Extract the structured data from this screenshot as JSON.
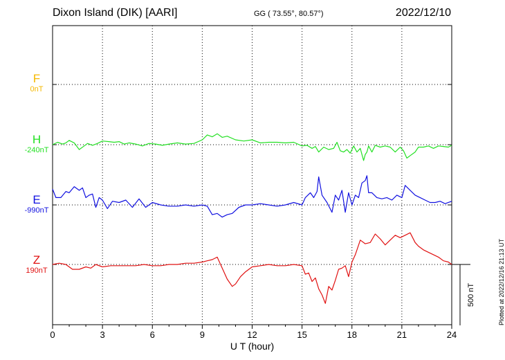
{
  "header": {
    "station": "Dixon Island (DIK)  [AARI]",
    "coords": "GG ( 73.55°,  80.57°)",
    "date": "2022/12/10"
  },
  "footer": {
    "plotted": "Plotted at 2022/12/16 21:13 UT"
  },
  "components": [
    {
      "name": "F",
      "baseline": "0nT",
      "color": "#f5b800"
    },
    {
      "name": "H",
      "baseline": "-240nT",
      "color": "#22e022"
    },
    {
      "name": "E",
      "baseline": "-990nT",
      "color": "#1010e0"
    },
    {
      "name": "Z",
      "baseline": "190nT",
      "color": "#e01010"
    }
  ],
  "chart_data": {
    "type": "line",
    "title": "Dixon Island (DIK)  [AARI]",
    "xlabel": "U T (hour)",
    "ylabel": "",
    "xlim": [
      0,
      24
    ],
    "xticks": [
      "0",
      "3",
      "6",
      "9",
      "12",
      "15",
      "18",
      "21",
      "24"
    ],
    "grid": true,
    "scale_bar": {
      "label": "500 nT",
      "value": 500
    },
    "series": [
      {
        "name": "F",
        "baseline_nT": 0,
        "x": [],
        "y": []
      },
      {
        "name": "H",
        "baseline_nT": -240,
        "x": [
          0,
          0.3,
          0.6,
          0.8,
          1.0,
          1.3,
          1.6,
          1.9,
          2.1,
          2.4,
          2.7,
          3.0,
          3.4,
          3.7,
          4.0,
          4.3,
          4.6,
          5.0,
          5.4,
          5.8,
          6.2,
          6.6,
          7.0,
          7.5,
          8.0,
          8.5,
          9.0,
          9.3,
          9.6,
          9.9,
          10.2,
          10.5,
          11.0,
          11.5,
          12.0,
          12.5,
          13.0,
          13.5,
          14.0,
          14.5,
          15.0,
          15.3,
          15.6,
          15.8,
          16.0,
          16.3,
          16.6,
          16.9,
          17.1,
          17.3,
          17.5,
          17.7,
          17.9,
          18.1,
          18.3,
          18.5,
          18.7,
          18.8,
          18.9,
          19.0,
          19.2,
          19.4,
          19.7,
          20.0,
          20.3,
          20.6,
          20.9,
          21.1,
          21.3,
          21.5,
          21.8,
          22.0,
          22.3,
          22.6,
          22.9,
          23.2,
          23.5,
          23.8,
          24.0
        ],
        "y": [
          0,
          20,
          5,
          15,
          35,
          15,
          -40,
          -10,
          10,
          -5,
          10,
          30,
          25,
          20,
          25,
          5,
          15,
          5,
          -10,
          10,
          5,
          -5,
          5,
          15,
          5,
          10,
          40,
          80,
          65,
          90,
          60,
          70,
          40,
          30,
          40,
          15,
          20,
          20,
          15,
          20,
          -10,
          -5,
          -30,
          -15,
          -60,
          -20,
          -40,
          -30,
          20,
          -50,
          -60,
          -40,
          -70,
          -10,
          -60,
          -30,
          -130,
          -80,
          -60,
          -10,
          -60,
          -5,
          -20,
          -10,
          -20,
          -60,
          -20,
          -50,
          -110,
          -90,
          -60,
          -20,
          -20,
          -10,
          -30,
          -10,
          -15,
          -20,
          -5
        ]
      },
      {
        "name": "E",
        "baseline_nT": -990,
        "x": [
          0,
          0.2,
          0.5,
          0.8,
          1.0,
          1.3,
          1.6,
          1.8,
          2.0,
          2.2,
          2.4,
          2.6,
          2.8,
          3.0,
          3.3,
          3.6,
          4.0,
          4.4,
          4.8,
          5.2,
          5.6,
          6.0,
          6.5,
          7.0,
          7.5,
          8.0,
          8.5,
          9.0,
          9.3,
          9.6,
          9.9,
          10.2,
          10.5,
          10.8,
          11.2,
          11.6,
          12.0,
          12.5,
          13.0,
          13.5,
          14.0,
          14.5,
          15.0,
          15.2,
          15.5,
          15.7,
          15.9,
          16.0,
          16.2,
          16.5,
          16.8,
          17.0,
          17.2,
          17.4,
          17.6,
          17.8,
          18.0,
          18.2,
          18.4,
          18.6,
          18.8,
          18.9,
          19.0,
          19.2,
          19.5,
          19.8,
          20.1,
          20.4,
          20.7,
          21.0,
          21.2,
          21.5,
          21.8,
          22.1,
          22.4,
          22.7,
          23.0,
          23.3,
          23.6,
          24.0
        ],
        "y": [
          130,
          60,
          60,
          110,
          100,
          150,
          120,
          140,
          60,
          80,
          90,
          -20,
          60,
          40,
          -30,
          30,
          20,
          40,
          -20,
          50,
          -20,
          20,
          0,
          -10,
          -10,
          0,
          -10,
          0,
          -10,
          -80,
          -70,
          -100,
          -80,
          -70,
          -20,
          0,
          0,
          10,
          0,
          -10,
          0,
          20,
          0,
          60,
          100,
          60,
          110,
          230,
          80,
          20,
          -60,
          80,
          40,
          120,
          -60,
          100,
          0,
          80,
          60,
          180,
          200,
          240,
          100,
          100,
          60,
          50,
          60,
          40,
          80,
          60,
          160,
          120,
          80,
          60,
          40,
          20,
          20,
          30,
          10,
          30
        ]
      },
      {
        "name": "Z",
        "baseline_nT": 190,
        "x": [
          0,
          0.4,
          0.8,
          1.2,
          1.6,
          2.0,
          2.3,
          2.6,
          3.0,
          3.5,
          4.0,
          4.5,
          5.0,
          5.5,
          6.0,
          6.5,
          7.0,
          7.5,
          8.0,
          8.5,
          9.0,
          9.3,
          9.6,
          9.9,
          10.2,
          10.5,
          10.8,
          11.0,
          11.3,
          11.6,
          12.0,
          12.5,
          13.0,
          13.5,
          14.0,
          14.5,
          15.0,
          15.2,
          15.4,
          15.6,
          15.8,
          16.0,
          16.2,
          16.4,
          16.6,
          16.8,
          17.0,
          17.2,
          17.4,
          17.6,
          17.8,
          18.0,
          18.2,
          18.5,
          18.8,
          19.1,
          19.4,
          19.7,
          20.0,
          20.3,
          20.6,
          20.9,
          21.2,
          21.5,
          21.8,
          22.0,
          22.3,
          22.6,
          22.9,
          23.2,
          23.5,
          23.8,
          24.0
        ],
        "y": [
          0,
          10,
          0,
          -40,
          -40,
          -20,
          -30,
          0,
          -20,
          -10,
          -10,
          -10,
          -10,
          0,
          -10,
          -10,
          0,
          0,
          10,
          10,
          20,
          30,
          40,
          60,
          -30,
          -120,
          -180,
          -160,
          -100,
          -60,
          -20,
          -10,
          0,
          -10,
          -10,
          0,
          -10,
          -80,
          -70,
          -140,
          -110,
          -200,
          -250,
          -320,
          -180,
          -210,
          -130,
          -40,
          -30,
          -10,
          -100,
          20,
          80,
          200,
          170,
          180,
          250,
          210,
          160,
          200,
          240,
          220,
          240,
          260,
          180,
          150,
          120,
          100,
          80,
          60,
          30,
          20,
          0
        ]
      }
    ]
  }
}
